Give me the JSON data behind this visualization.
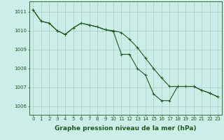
{
  "line1_x": [
    0,
    1,
    2,
    3,
    4,
    5,
    6,
    7,
    8,
    9,
    10,
    11,
    12,
    13,
    14,
    15,
    16,
    17,
    18,
    19,
    20,
    21,
    22,
    23
  ],
  "line1_y": [
    1011.1,
    1010.5,
    1010.4,
    1010.0,
    1009.8,
    1010.15,
    1010.4,
    1010.3,
    1010.2,
    1010.05,
    1009.95,
    1008.75,
    1008.75,
    1008.0,
    1007.65,
    1006.65,
    1006.3,
    1006.3,
    1007.05,
    1007.05,
    1007.05,
    1006.85,
    1006.7,
    1006.5
  ],
  "line2_x": [
    0,
    1,
    2,
    3,
    4,
    5,
    6,
    7,
    8,
    9,
    10,
    11,
    12,
    13,
    14,
    15,
    16,
    17,
    18,
    19,
    20,
    21,
    22,
    23
  ],
  "line2_y": [
    1011.1,
    1010.5,
    1010.4,
    1010.0,
    1009.8,
    1010.15,
    1010.4,
    1010.3,
    1010.2,
    1010.05,
    1010.0,
    1009.9,
    1009.55,
    1009.1,
    1008.55,
    1008.0,
    1007.5,
    1007.05,
    1007.05,
    1007.05,
    1007.05,
    1006.85,
    1006.7,
    1006.5
  ],
  "line_color": "#1a5c1a",
  "bg_color": "#cceee8",
  "grid_color_h": "#aaccc8",
  "grid_color_v": "#aaccc8",
  "ylim": [
    1005.55,
    1011.55
  ],
  "xlim": [
    -0.5,
    23.5
  ],
  "yticks": [
    1006,
    1007,
    1008,
    1009,
    1010,
    1011
  ],
  "xticks": [
    0,
    1,
    2,
    3,
    4,
    5,
    6,
    7,
    8,
    9,
    10,
    11,
    12,
    13,
    14,
    15,
    16,
    17,
    18,
    19,
    20,
    21,
    22,
    23
  ],
  "xlabel": "Graphe pression niveau de la mer (hPa)",
  "marker": "+",
  "marker_size": 3,
  "line_width": 0.8,
  "tick_fontsize": 5,
  "label_fontsize": 6.5
}
